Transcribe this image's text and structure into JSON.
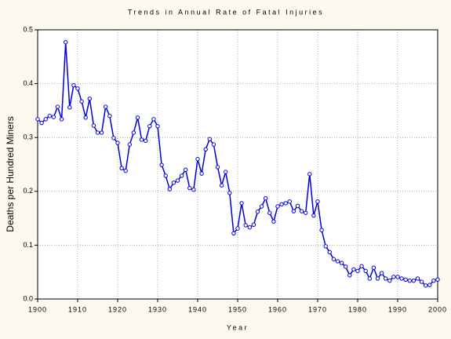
{
  "chart_data": {
    "type": "line",
    "title": "Trends in Annual Rate of Fatal Injuries",
    "x_label": "Year",
    "y_label": "Deaths per Hundred Miners",
    "x": [
      1900,
      1901,
      1902,
      1903,
      1904,
      1905,
      1906,
      1907,
      1908,
      1909,
      1910,
      1911,
      1912,
      1913,
      1914,
      1915,
      1916,
      1917,
      1918,
      1919,
      1920,
      1921,
      1922,
      1923,
      1924,
      1925,
      1926,
      1927,
      1928,
      1929,
      1930,
      1931,
      1932,
      1933,
      1934,
      1935,
      1936,
      1937,
      1938,
      1939,
      1940,
      1941,
      1942,
      1943,
      1944,
      1945,
      1946,
      1947,
      1948,
      1949,
      1950,
      1951,
      1952,
      1953,
      1954,
      1955,
      1956,
      1957,
      1958,
      1959,
      1960,
      1961,
      1962,
      1963,
      1964,
      1965,
      1966,
      1967,
      1968,
      1969,
      1970,
      1971,
      1972,
      1973,
      1974,
      1975,
      1976,
      1977,
      1978,
      1979,
      1980,
      1981,
      1982,
      1983,
      1984,
      1985,
      1986,
      1987,
      1988,
      1989,
      1990,
      1991,
      1992,
      1993,
      1994,
      1995,
      1996,
      1997,
      1998,
      1999,
      2000
    ],
    "series": [
      {
        "color": "#0000dd",
        "values": [
          0.334,
          0.327,
          0.334,
          0.34,
          0.338,
          0.357,
          0.334,
          0.477,
          0.356,
          0.397,
          0.391,
          0.367,
          0.337,
          0.372,
          0.322,
          0.309,
          0.309,
          0.357,
          0.34,
          0.299,
          0.29,
          0.243,
          0.238,
          0.287,
          0.309,
          0.337,
          0.296,
          0.294,
          0.321,
          0.334,
          0.321,
          0.249,
          0.229,
          0.204,
          0.216,
          0.22,
          0.229,
          0.24,
          0.206,
          0.203,
          0.26,
          0.233,
          0.278,
          0.297,
          0.287,
          0.245,
          0.211,
          0.236,
          0.197,
          0.122,
          0.131,
          0.178,
          0.137,
          0.133,
          0.138,
          0.162,
          0.172,
          0.187,
          0.16,
          0.144,
          0.172,
          0.176,
          0.178,
          0.181,
          0.163,
          0.173,
          0.163,
          0.16,
          0.232,
          0.155,
          0.181,
          0.128,
          0.098,
          0.087,
          0.074,
          0.07,
          0.067,
          0.06,
          0.044,
          0.055,
          0.052,
          0.061,
          0.052,
          0.038,
          0.058,
          0.038,
          0.048,
          0.038,
          0.034,
          0.041,
          0.041,
          0.038,
          0.036,
          0.034,
          0.034,
          0.038,
          0.032,
          0.025,
          0.026,
          0.034,
          0.036
        ]
      }
    ],
    "xlim": [
      1900,
      2000
    ],
    "xticks": [
      1900,
      1910,
      1920,
      1930,
      1940,
      1950,
      1960,
      1970,
      1980,
      1990,
      2000
    ],
    "ylim": [
      0,
      0.5
    ],
    "yticks": [
      {
        "value": 0,
        "label": "0.0"
      },
      0.1,
      0.2,
      0.3,
      0.4,
      0.5
    ],
    "grid": true
  }
}
